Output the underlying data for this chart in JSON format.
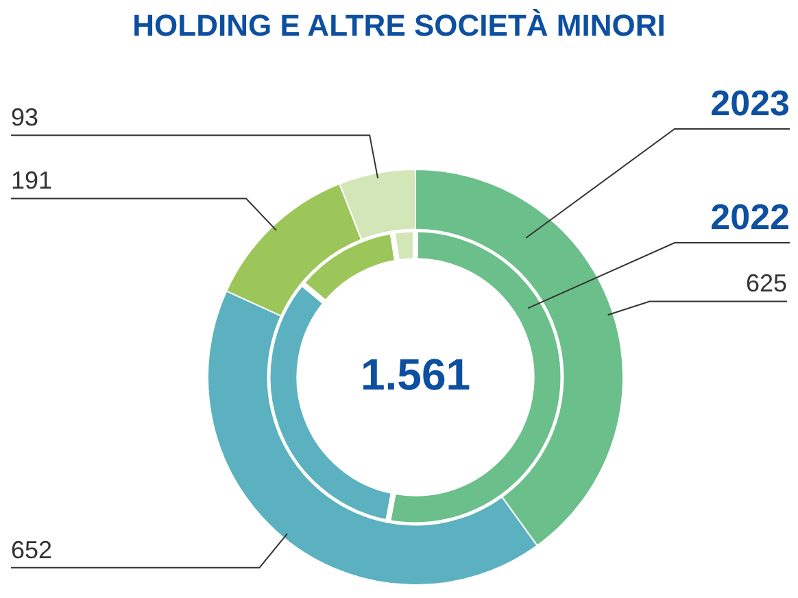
{
  "chart_data": {
    "type": "donut",
    "title": "HOLDING E ALTRE SOCIETÀ MINORI",
    "categories": [
      null,
      null,
      null,
      null
    ],
    "series": [
      {
        "name": "2023",
        "colors": [
          "#6bbf8a",
          "#5bb1c0",
          "#9cc55a",
          "#d3e6b8"
        ],
        "values": [
          625,
          652,
          191,
          93
        ],
        "value_labels": [
          "625",
          "652",
          "191",
          "93"
        ]
      },
      {
        "name": "2022",
        "colors": [
          "#6bbf8a",
          "#5bb1c0",
          "#9cc55a",
          "#d3e6b8"
        ],
        "values": [
          53,
          33,
          11.5,
          2.5
        ]
      }
    ],
    "annotations": [
      "1.561"
    ]
  }
}
